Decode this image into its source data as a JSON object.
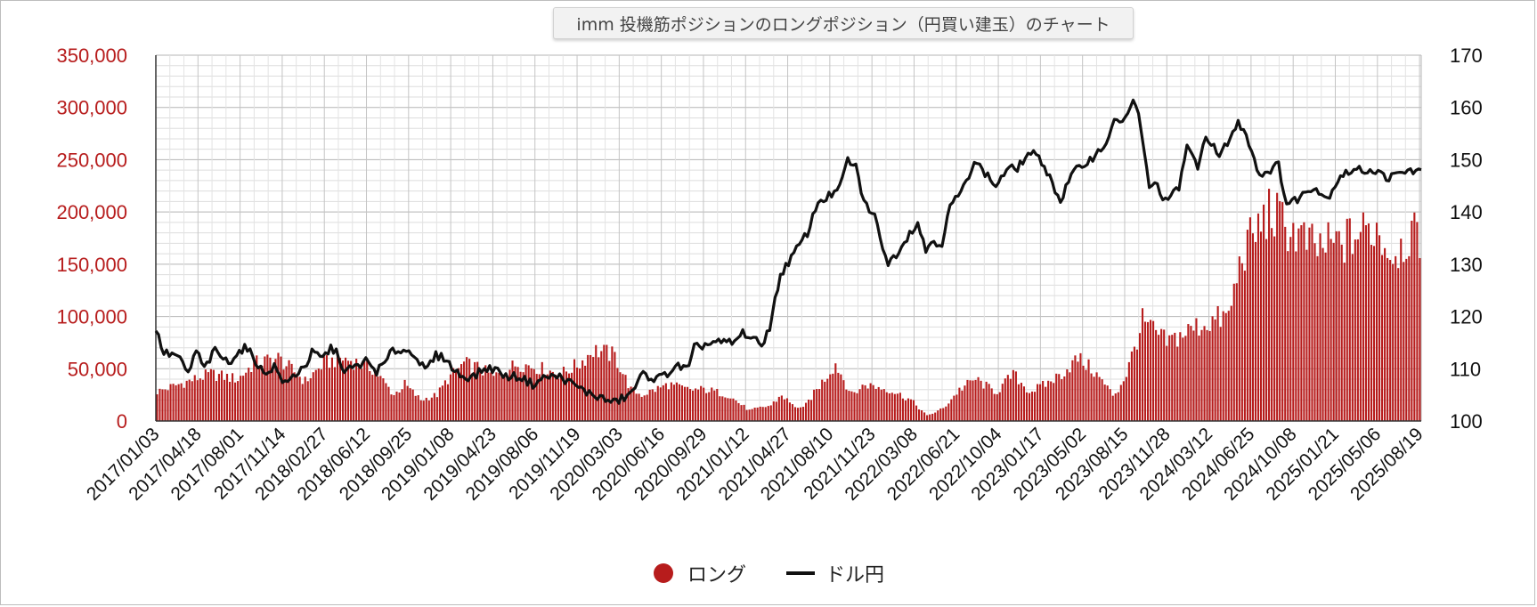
{
  "chart_data": {
    "type": "bar+line",
    "title": "imm 投機筋ポジションのロングポジション（円買い建玉）のチャート",
    "x_tick_labels": [
      "2017/01/03",
      "2017/04/18",
      "2017/08/01",
      "2017/11/14",
      "2018/02/27",
      "2018/06/12",
      "2018/09/25",
      "2019/01/08",
      "2019/04/23",
      "2019/08/06",
      "2019/11/19",
      "2020/03/03",
      "2020/06/16",
      "2020/09/29",
      "2021/01/12",
      "2021/04/27",
      "2021/08/10",
      "2021/11/23",
      "2022/03/08",
      "2022/06/21",
      "2022/10/04",
      "2023/01/17",
      "2023/05/02",
      "2023/08/15",
      "2023/11/28",
      "2024/03/12",
      "2024/06/25",
      "2024/10/08",
      "2025/01/21",
      "2025/05/06",
      "2025/08/19"
    ],
    "y_left": {
      "ticks": [
        "0",
        "50,000",
        "100,000",
        "150,000",
        "200,000",
        "250,000",
        "300,000",
        "350,000"
      ],
      "ylim": [
        0,
        350000
      ]
    },
    "y_right": {
      "ticks": [
        "100",
        "110",
        "120",
        "130",
        "140",
        "150",
        "160",
        "170"
      ],
      "ylim": [
        100,
        170
      ]
    },
    "grid": true,
    "legend_position": "bottom",
    "series": [
      {
        "name": "ロング",
        "type": "bar",
        "axis": "left",
        "color": "#b71c1c",
        "keyframes_weeks": [
          0,
          8,
          20,
          30,
          36,
          45,
          55,
          60,
          62,
          68,
          72,
          80,
          85,
          88,
          92,
          98,
          104,
          108,
          114,
          120,
          125,
          134,
          140,
          150,
          157,
          162,
          167,
          170,
          176,
          180,
          190,
          197,
          204,
          212,
          220,
          228,
          232,
          236,
          240,
          245,
          252,
          258,
          263,
          272,
          280,
          286,
          292,
          298,
          304,
          310,
          312,
          318,
          324,
          330,
          336,
          340,
          342,
          347,
          352,
          355,
          357,
          360,
          366,
          375,
          386,
          391,
          398,
          403,
          413,
          420,
          425,
          430,
          440,
          447,
          453,
          458,
          463,
          466,
          470
        ],
        "keyframes_values": [
          28000,
          35000,
          45000,
          40000,
          55000,
          60000,
          38000,
          50000,
          55000,
          60000,
          58000,
          50000,
          35000,
          25000,
          35000,
          20000,
          25000,
          40000,
          55000,
          50000,
          42000,
          55000,
          52000,
          45000,
          55000,
          68000,
          65000,
          62000,
          30000,
          25000,
          35000,
          30000,
          30000,
          25000,
          10000,
          15000,
          25000,
          15000,
          12000,
          30000,
          55000,
          25000,
          35000,
          30000,
          20000,
          5000,
          12000,
          30000,
          40000,
          30000,
          28000,
          45000,
          28000,
          35000,
          45000,
          55000,
          60000,
          50000,
          35000,
          25000,
          30000,
          45000,
          95000,
          75000,
          90000,
          95000,
          100000,
          160000,
          200000,
          185000,
          175000,
          165000,
          170000,
          180000,
          185000,
          160000,
          170000,
          180000,
          160000
        ]
      },
      {
        "name": "ドル円",
        "type": "line",
        "axis": "right",
        "color": "#111111",
        "keyframes_weeks": [
          0,
          3,
          8,
          12,
          15,
          18,
          22,
          27,
          29,
          33,
          36,
          40,
          44,
          48,
          52,
          56,
          58,
          62,
          65,
          68,
          70,
          72,
          75,
          78,
          82,
          85,
          88,
          92,
          96,
          100,
          104,
          108,
          110,
          114,
          118,
          122,
          126,
          130,
          135,
          140,
          145,
          150,
          155,
          160,
          165,
          170,
          176,
          181,
          186,
          188,
          191,
          193,
          198,
          200,
          207,
          215,
          218,
          225,
          228,
          232,
          237,
          242,
          246,
          250,
          254,
          257,
          260,
          263,
          267,
          272,
          275,
          280,
          283,
          286,
          288,
          292,
          295,
          300,
          304,
          307,
          312,
          316,
          320,
          325,
          330,
          336,
          340,
          343,
          347,
          352,
          356,
          360,
          363,
          365,
          369,
          372,
          375,
          380,
          383,
          387,
          390,
          395,
          402,
          405,
          410,
          417,
          420,
          424,
          430,
          435,
          440,
          445,
          452,
          458,
          463,
          466,
          470
        ],
        "keyframes_values": [
          117.5,
          113,
          112.5,
          109,
          113.5,
          110,
          113.5,
          111,
          112.5,
          114,
          112.5,
          109,
          110.5,
          107,
          109,
          111,
          113,
          112,
          114,
          112.5,
          109,
          110,
          110.5,
          111.5,
          109.5,
          111,
          113.5,
          113.5,
          113,
          109.5,
          112.5,
          112,
          110,
          108.5,
          108.5,
          110,
          110,
          108.5,
          108.5,
          107,
          108.5,
          108.5,
          107,
          105.5,
          104.5,
          103.5,
          105,
          109,
          108,
          108.5,
          109.5,
          110.5,
          110,
          114,
          115,
          115,
          117,
          114.5,
          118,
          128,
          132,
          136,
          142,
          143,
          144.5,
          150,
          148.5,
          142,
          139,
          130,
          132,
          136,
          138,
          132.5,
          134.5,
          134,
          141,
          144.5,
          150,
          148,
          145,
          148,
          148.5,
          151.5,
          149,
          142,
          147,
          148.5,
          150,
          152.5,
          157,
          158,
          161,
          158.5,
          145,
          145,
          142,
          144.5,
          153,
          148,
          155,
          150.5,
          157,
          155,
          147,
          149,
          141.5,
          142.5,
          145,
          142.5,
          147,
          148,
          148,
          146.5,
          147.5,
          148,
          147.5
        ]
      }
    ]
  }
}
